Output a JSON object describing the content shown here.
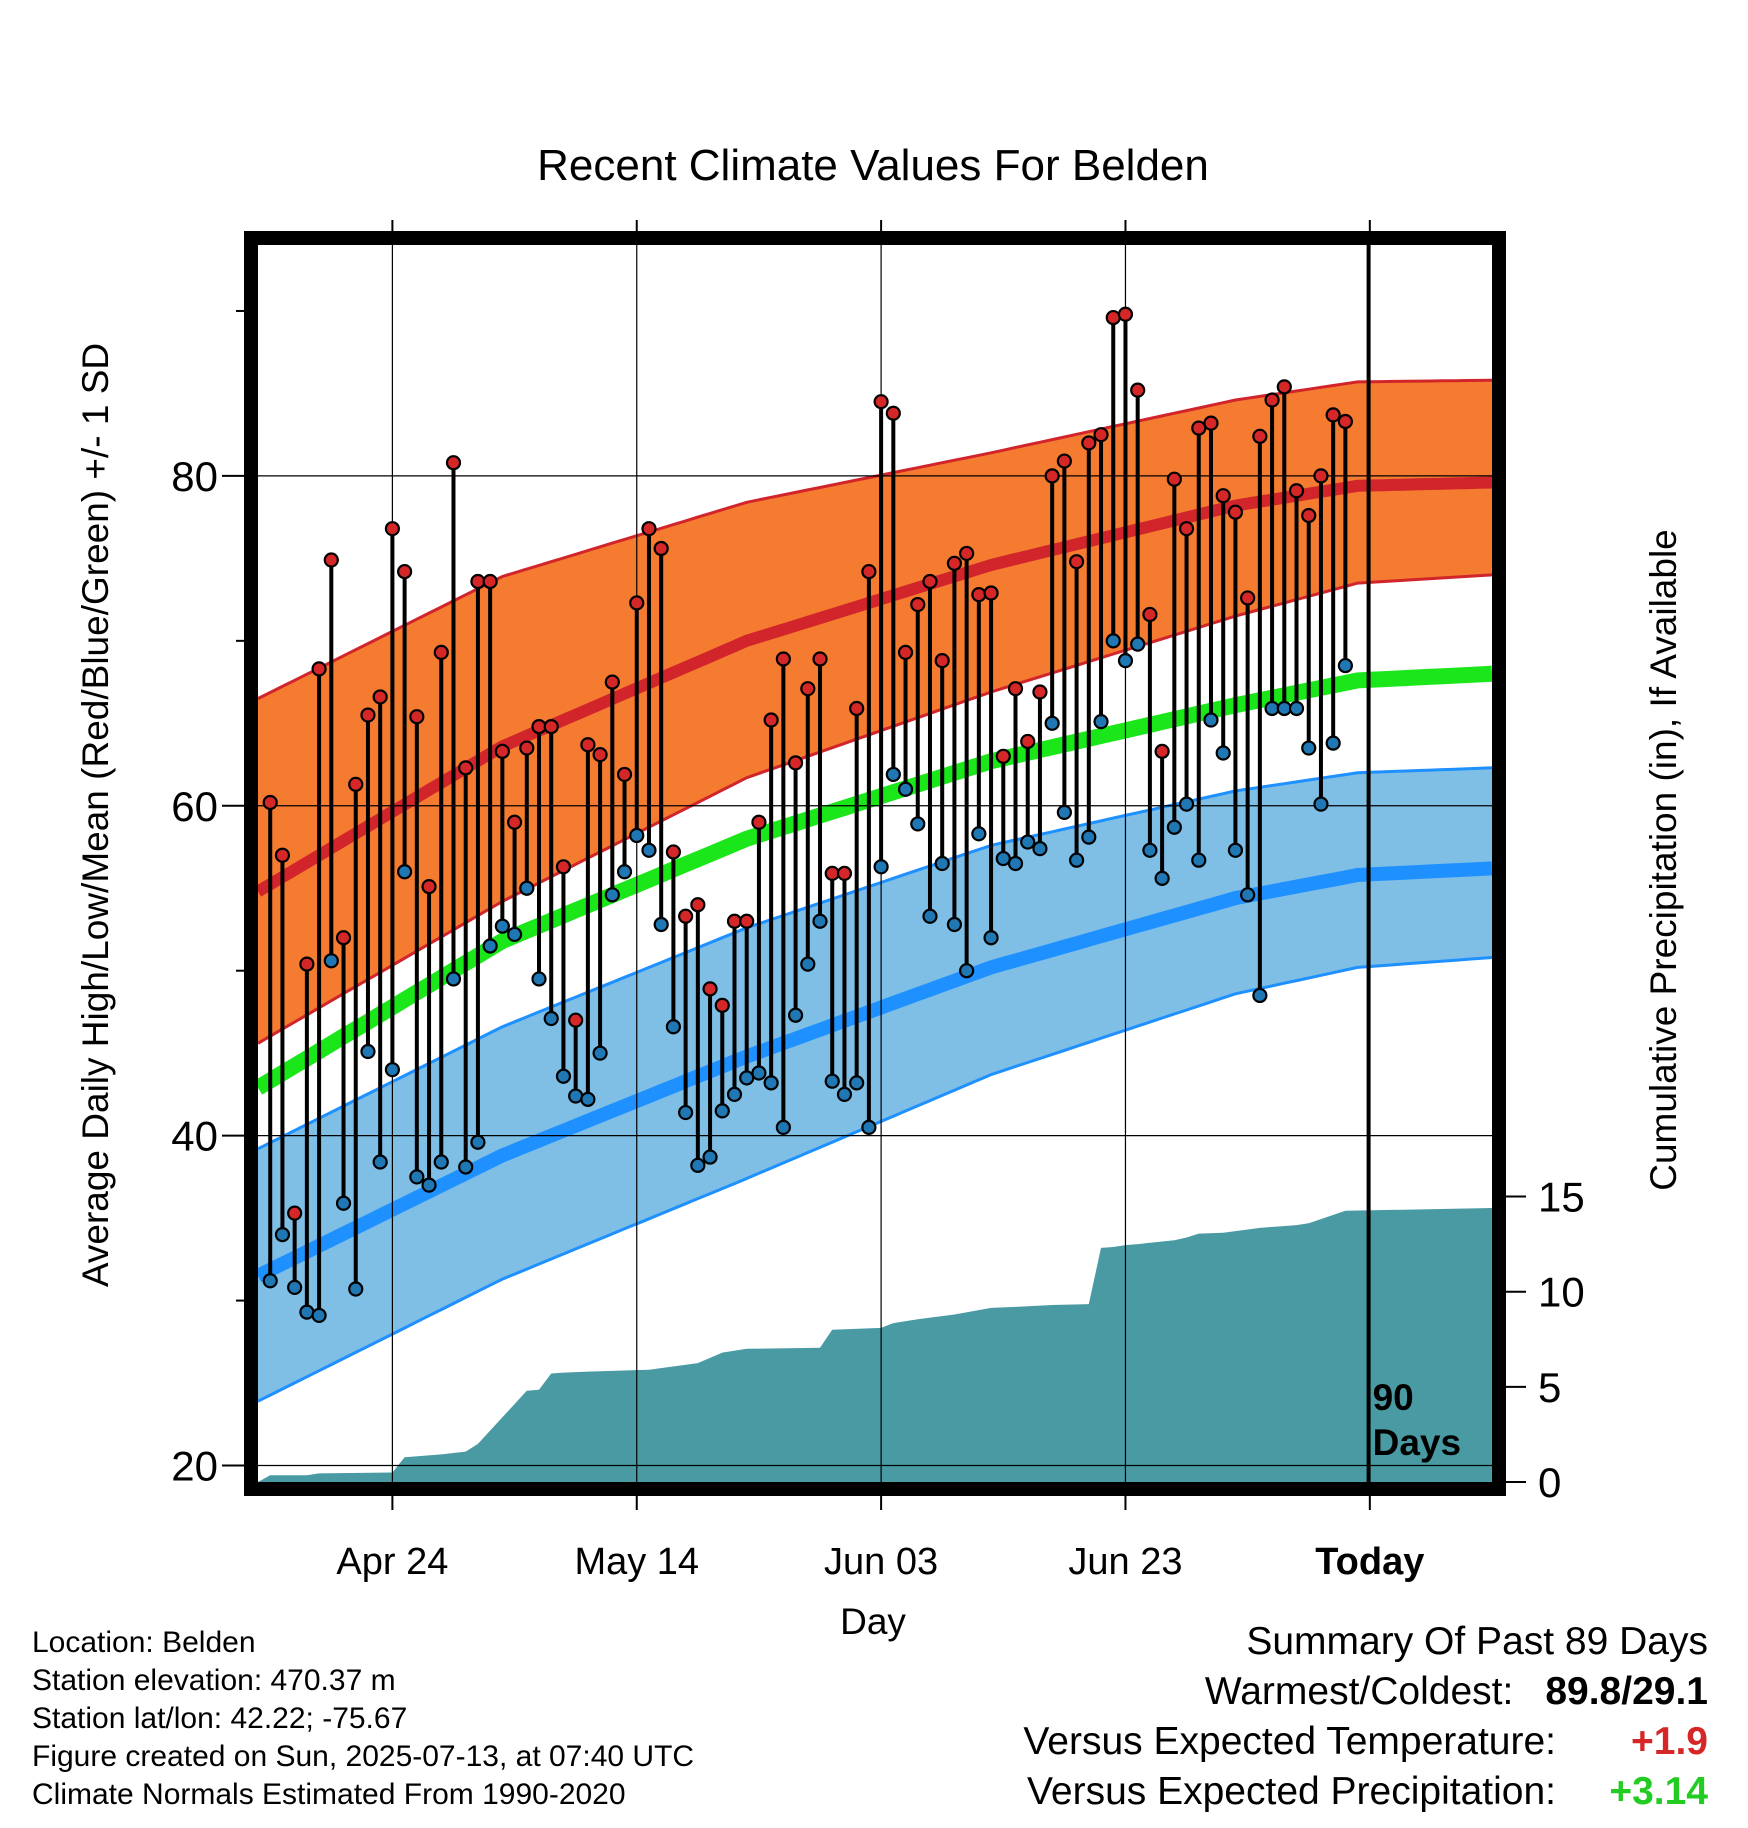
{
  "chart_data": {
    "type": "line",
    "title": "Recent Climate Values For Belden",
    "xlabel": "Day",
    "ylabel": "Average Daily High/Low/Mean (Red/Blue/Green) +/- 1 SD",
    "y2label": "Cumulative Precipitation (in), If Available",
    "ylim": [
      19,
      94
    ],
    "y2lim": [
      0,
      65
    ],
    "yticks": [
      20,
      40,
      60,
      80
    ],
    "y2ticks": [
      0,
      5,
      10,
      15
    ],
    "xlim_days": [
      0,
      101
    ],
    "xticks": [
      {
        "label": "Apr 24",
        "day": 11
      },
      {
        "label": "May 14",
        "day": 31
      },
      {
        "label": "Jun 03",
        "day": 51
      },
      {
        "label": "Jun 23",
        "day": 71
      },
      {
        "label": "Today",
        "day": 91
      }
    ],
    "today_marker": {
      "day": 90.9,
      "label_line1": "90",
      "label_line2": "Days"
    },
    "grid": true,
    "normals": {
      "days": [
        0,
        20,
        40,
        60,
        80,
        90,
        101
      ],
      "high_mean": [
        54.8,
        63.6,
        70.0,
        74.6,
        78.2,
        79.4,
        79.6
      ],
      "high_upper": [
        66.5,
        73.9,
        78.4,
        81.4,
        84.6,
        85.7,
        85.8
      ],
      "high_lower": [
        45.6,
        54.2,
        61.7,
        66.9,
        71.5,
        73.5,
        74.0
      ],
      "mean": [
        42.9,
        51.8,
        58.0,
        62.7,
        66.1,
        67.6,
        68.0
      ],
      "low_mean": [
        31.5,
        38.8,
        44.8,
        50.2,
        54.4,
        55.8,
        56.2
      ],
      "low_upper": [
        39.2,
        46.6,
        52.6,
        57.6,
        60.9,
        62.0,
        62.3
      ],
      "low_lower": [
        23.9,
        31.3,
        37.4,
        43.7,
        48.6,
        50.2,
        50.8
      ]
    },
    "series": [
      {
        "name": "High",
        "color": "#d62728",
        "values": [
          60.2,
          57.0,
          35.3,
          50.4,
          68.3,
          74.9,
          52.0,
          61.3,
          65.5,
          66.6,
          76.8,
          74.2,
          65.4,
          55.1,
          69.3,
          80.8,
          62.3,
          73.6,
          73.6,
          63.3,
          59.0,
          63.5,
          64.8,
          64.8,
          56.3,
          47.0,
          63.7,
          63.1,
          67.5,
          61.9,
          72.3,
          76.8,
          75.6,
          57.2,
          53.3,
          54.0,
          48.9,
          47.9,
          53.0,
          53.0,
          59.0,
          65.2,
          68.9,
          62.6,
          67.1,
          68.9,
          55.9,
          55.9,
          65.9,
          74.2,
          84.5,
          83.8,
          69.3,
          72.2,
          73.6,
          68.8,
          74.7,
          75.3,
          72.8,
          72.9,
          63.0,
          67.1,
          63.9,
          66.9,
          80.0,
          80.9,
          74.8,
          82.0,
          82.5,
          89.6,
          89.8,
          85.2,
          71.6,
          63.3,
          79.8,
          76.8,
          82.9,
          83.2,
          78.8,
          77.8,
          72.6,
          82.4,
          84.6,
          85.4,
          79.1,
          77.6,
          80.0,
          83.7,
          83.3
        ]
      },
      {
        "name": "Low",
        "color": "#1f77b4",
        "values": [
          31.2,
          34.0,
          30.8,
          29.3,
          29.1,
          50.6,
          35.9,
          30.7,
          45.1,
          38.4,
          44.0,
          56.0,
          37.5,
          37.0,
          38.4,
          49.5,
          38.1,
          39.6,
          51.5,
          52.7,
          52.2,
          55.0,
          49.5,
          47.1,
          43.6,
          42.4,
          42.2,
          45.0,
          54.6,
          56.0,
          58.2,
          57.3,
          52.8,
          46.6,
          41.4,
          38.2,
          38.7,
          41.5,
          42.5,
          43.5,
          43.8,
          43.2,
          40.5,
          47.3,
          50.4,
          53.0,
          43.3,
          42.5,
          43.2,
          40.5,
          56.3,
          61.9,
          61.0,
          58.9,
          53.3,
          56.5,
          52.8,
          50.0,
          58.3,
          52.0,
          56.8,
          56.5,
          57.8,
          57.4,
          65.0,
          59.6,
          56.7,
          58.1,
          65.1,
          70.0,
          68.8,
          69.8,
          57.3,
          55.6,
          58.7,
          60.1,
          56.7,
          65.2,
          63.2,
          57.3,
          54.6,
          48.5,
          65.9,
          65.9,
          65.9,
          63.5,
          60.1,
          63.8,
          68.5
        ]
      }
    ],
    "precipitation": {
      "days": [
        0,
        1,
        4,
        5,
        11,
        12,
        15,
        17,
        18,
        20,
        22,
        23,
        24,
        25,
        27,
        32,
        36,
        38,
        40,
        46,
        47,
        51,
        52,
        54,
        57,
        60,
        62,
        65,
        68,
        69,
        70,
        71,
        72,
        75,
        76,
        77,
        79,
        82,
        85,
        86,
        89,
        101
      ],
      "total": [
        0.0,
        0.35,
        0.35,
        0.45,
        0.5,
        1.3,
        1.45,
        1.6,
        2.0,
        3.4,
        4.8,
        4.85,
        5.7,
        5.75,
        5.8,
        5.9,
        6.25,
        6.8,
        7.0,
        7.05,
        8.0,
        8.1,
        8.35,
        8.55,
        8.8,
        9.15,
        9.2,
        9.3,
        9.35,
        12.3,
        12.35,
        12.45,
        12.5,
        12.7,
        12.85,
        13.05,
        13.1,
        13.35,
        13.5,
        13.6,
        14.25,
        14.4
      ]
    },
    "colors": {
      "high_band": "#f47b30",
      "high_line": "#d1242b",
      "mean_line": "#1ae61a",
      "low_band": "#7fbfe6",
      "low_line": "#1e90ff",
      "precip": "#4a9aa4"
    }
  },
  "footer": {
    "location": "Location: Belden",
    "elevation": "Station elevation: 470.37 m",
    "latlon": "Station lat/lon: 42.22; -75.67",
    "created": "Figure created on Sun, 2025-07-13, at 07:40 UTC",
    "normals": "Climate Normals Estimated From 1990-2020"
  },
  "summary": {
    "title": "Summary Of Past 89 Days",
    "warmest_label": "Warmest/Coldest:",
    "warmest_value": "89.8/29.1",
    "temp_label": "Versus Expected Temperature:",
    "temp_value": "+1.9",
    "temp_color": "#d62728",
    "precip_label": "Versus Expected Precipitation:",
    "precip_value": "+3.14",
    "precip_color": "#22cc22"
  }
}
